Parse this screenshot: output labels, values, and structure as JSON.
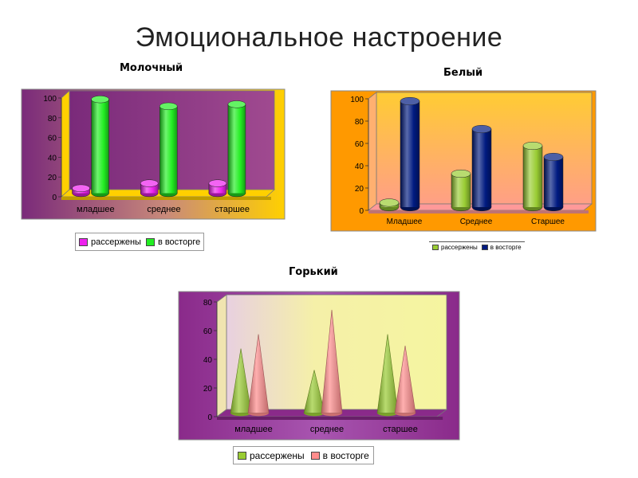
{
  "slide": {
    "title": "Эмоциональное настроение"
  },
  "chart_data": [
    {
      "type": "bar",
      "title": "Молочный",
      "categories": [
        "младшее",
        "среднее",
        "старшее"
      ],
      "series": [
        {
          "name": "рассержены",
          "values": [
            5,
            10,
            10
          ]
        },
        {
          "name": "в восторге",
          "values": [
            95,
            88,
            90
          ]
        }
      ],
      "ylim": [
        0,
        100
      ],
      "yticks": [
        0,
        20,
        40,
        60,
        80,
        100
      ],
      "grid": false,
      "legend": "bottom",
      "colors": {
        "series0": "#ee22ee",
        "series1": "#22ee22",
        "wall": "#8a2a8a",
        "floor": "#ffd000"
      }
    },
    {
      "type": "bar",
      "title": "Белый",
      "categories": [
        "Младшее",
        "Среднее",
        "Старшее"
      ],
      "series": [
        {
          "name": "рассержены",
          "values": [
            4,
            30,
            55
          ]
        },
        {
          "name": "в восторге",
          "values": [
            95,
            70,
            45
          ]
        }
      ],
      "ylim": [
        0,
        100
      ],
      "yticks": [
        0,
        20,
        40,
        60,
        80,
        100
      ],
      "grid": false,
      "legend": "bottom",
      "colors": {
        "series0": "#99cc33",
        "series1": "#001a80",
        "wall": "#ffb23f",
        "floor": "#ff9900"
      }
    },
    {
      "type": "bar",
      "title": "Горький",
      "categories": [
        "младшее",
        "среднее",
        "старшее"
      ],
      "series": [
        {
          "name": "рассержены",
          "values": [
            45,
            30,
            55
          ]
        },
        {
          "name": "в восторге",
          "values": [
            55,
            72,
            47
          ]
        }
      ],
      "ylim": [
        0,
        80
      ],
      "yticks": [
        0,
        20,
        40,
        60,
        80
      ],
      "grid": false,
      "legend": "bottom",
      "colors": {
        "series0": "#99cc33",
        "series1": "#ff8c8c",
        "wall": "#f5f5a0",
        "floor": "#8a2a8a"
      }
    }
  ]
}
